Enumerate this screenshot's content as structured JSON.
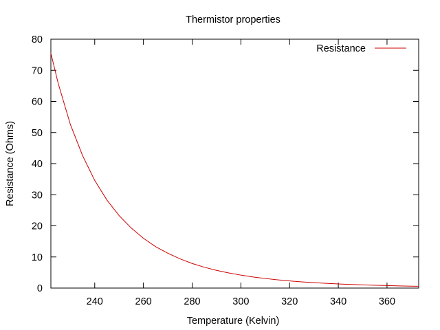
{
  "chart_data": {
    "type": "line",
    "title": "Thermistor properties",
    "xlabel": "Temperature (Kelvin)",
    "ylabel": "Resistance (Ohms)",
    "xlim": [
      222,
      373
    ],
    "ylim": [
      0,
      80
    ],
    "xticks": [
      240,
      260,
      280,
      300,
      320,
      340,
      360
    ],
    "yticks": [
      0,
      10,
      20,
      30,
      40,
      50,
      60,
      70,
      80
    ],
    "legend": "top-right",
    "grid": false,
    "series": [
      {
        "name": "Resistance",
        "color": "#cc0000",
        "x": [
          222,
          225,
          230,
          235,
          240,
          245,
          250,
          255,
          260,
          265,
          270,
          275,
          280,
          285,
          290,
          295,
          300,
          305,
          310,
          315,
          320,
          325,
          330,
          335,
          340,
          345,
          350,
          355,
          360,
          365,
          370,
          373
        ],
        "y": [
          75.5,
          65.8,
          52.6,
          42.6,
          34.6,
          28.3,
          23.3,
          19.3,
          16.0,
          13.3,
          11.2,
          9.4,
          7.9,
          6.7,
          5.7,
          4.86,
          4.16,
          3.57,
          3.08,
          2.66,
          2.3,
          2.0,
          1.74,
          1.52,
          1.33,
          1.16,
          1.02,
          0.9,
          0.79,
          0.7,
          0.62,
          0.58
        ]
      }
    ]
  }
}
